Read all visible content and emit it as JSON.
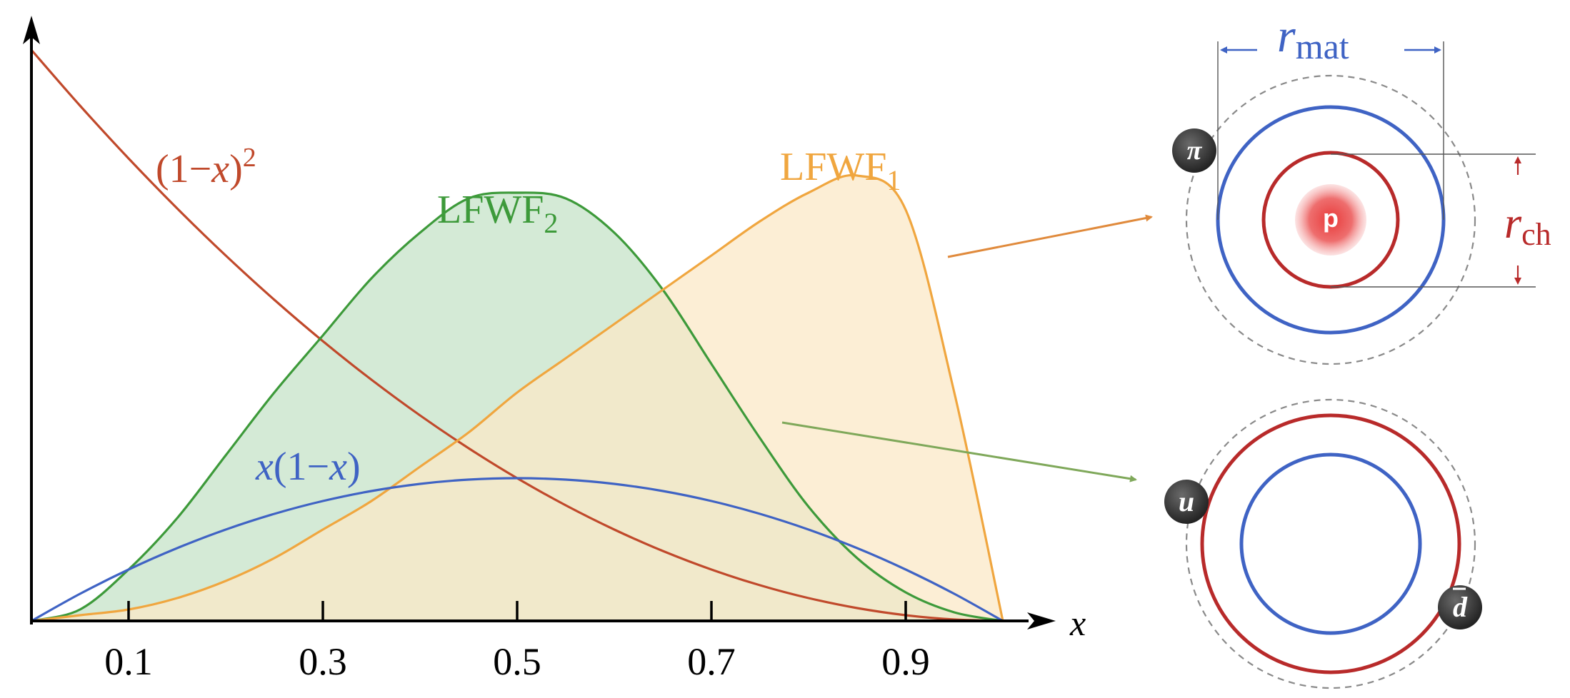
{
  "colors": {
    "red": "#c0492b",
    "green": "#3d9a3a",
    "orange": "#f0a63f",
    "blue": "#3f63c4",
    "green_fill": "#cfe8d2",
    "orange_fill": "#fbe8c7",
    "overlap_fill": "#c8d8a8",
    "dark_red": "#b82a2a",
    "olive_arrow": "#7fa85a",
    "orange_arrow": "#e08a3c",
    "ball": "#3a3a3a"
  },
  "chart_data": {
    "type": "line",
    "x": [
      0,
      0.05,
      0.1,
      0.15,
      0.2,
      0.25,
      0.3,
      0.35,
      0.4,
      0.45,
      0.5,
      0.55,
      0.6,
      0.65,
      0.7,
      0.75,
      0.8,
      0.85,
      0.9,
      0.95,
      1.0
    ],
    "series": [
      {
        "name": "(1−x)^2",
        "values": [
          1.0,
          0.9025,
          0.81,
          0.7225,
          0.64,
          0.5625,
          0.49,
          0.4225,
          0.36,
          0.3025,
          0.25,
          0.2025,
          0.16,
          0.1225,
          0.09,
          0.0625,
          0.04,
          0.0225,
          0.01,
          0.0025,
          0.0
        ]
      },
      {
        "name": "LFWF2",
        "values": [
          0.0,
          0.02,
          0.09,
          0.18,
          0.29,
          0.4,
          0.5,
          0.6,
          0.68,
          0.74,
          0.75,
          0.74,
          0.68,
          0.58,
          0.45,
          0.32,
          0.2,
          0.11,
          0.05,
          0.015,
          0.0
        ]
      },
      {
        "name": "LFWF1",
        "values": [
          0.0,
          0.01,
          0.02,
          0.04,
          0.07,
          0.11,
          0.16,
          0.21,
          0.27,
          0.33,
          0.4,
          0.46,
          0.52,
          0.58,
          0.64,
          0.7,
          0.75,
          0.78,
          0.72,
          0.4,
          0.0
        ]
      },
      {
        "name": "x(1−x)",
        "values": [
          0.0,
          0.0475,
          0.09,
          0.1275,
          0.16,
          0.1875,
          0.21,
          0.2275,
          0.24,
          0.2475,
          0.25,
          0.2475,
          0.24,
          0.2275,
          0.21,
          0.1875,
          0.16,
          0.1275,
          0.09,
          0.0475,
          0.0
        ]
      }
    ],
    "tick_labels": [
      "0.1",
      "0.3",
      "0.5",
      "0.7",
      "0.9"
    ],
    "xlabel": "x",
    "ylabel": "",
    "xlim": [
      0,
      1.05
    ],
    "ylim": [
      0,
      1.05
    ],
    "grid": false,
    "legend": "none"
  },
  "labels": {
    "curve_red": {
      "main": "(1−",
      "var": "x",
      "close": ")",
      "sup": "2"
    },
    "curve_green": {
      "main": "LFWF",
      "sub": "2"
    },
    "curve_orange": {
      "main": "LFWF",
      "sub": "1"
    },
    "curve_blue": {
      "var1": "x",
      "open": "(1−",
      "var2": "x",
      "close": ")"
    },
    "axis_x": "x"
  },
  "diagram": {
    "r_mat": {
      "r": "r",
      "sub": "mat"
    },
    "r_ch": {
      "r": "r",
      "sub": "ch"
    },
    "proton": "p",
    "pion": "π",
    "up": "u",
    "dbar": "d"
  }
}
